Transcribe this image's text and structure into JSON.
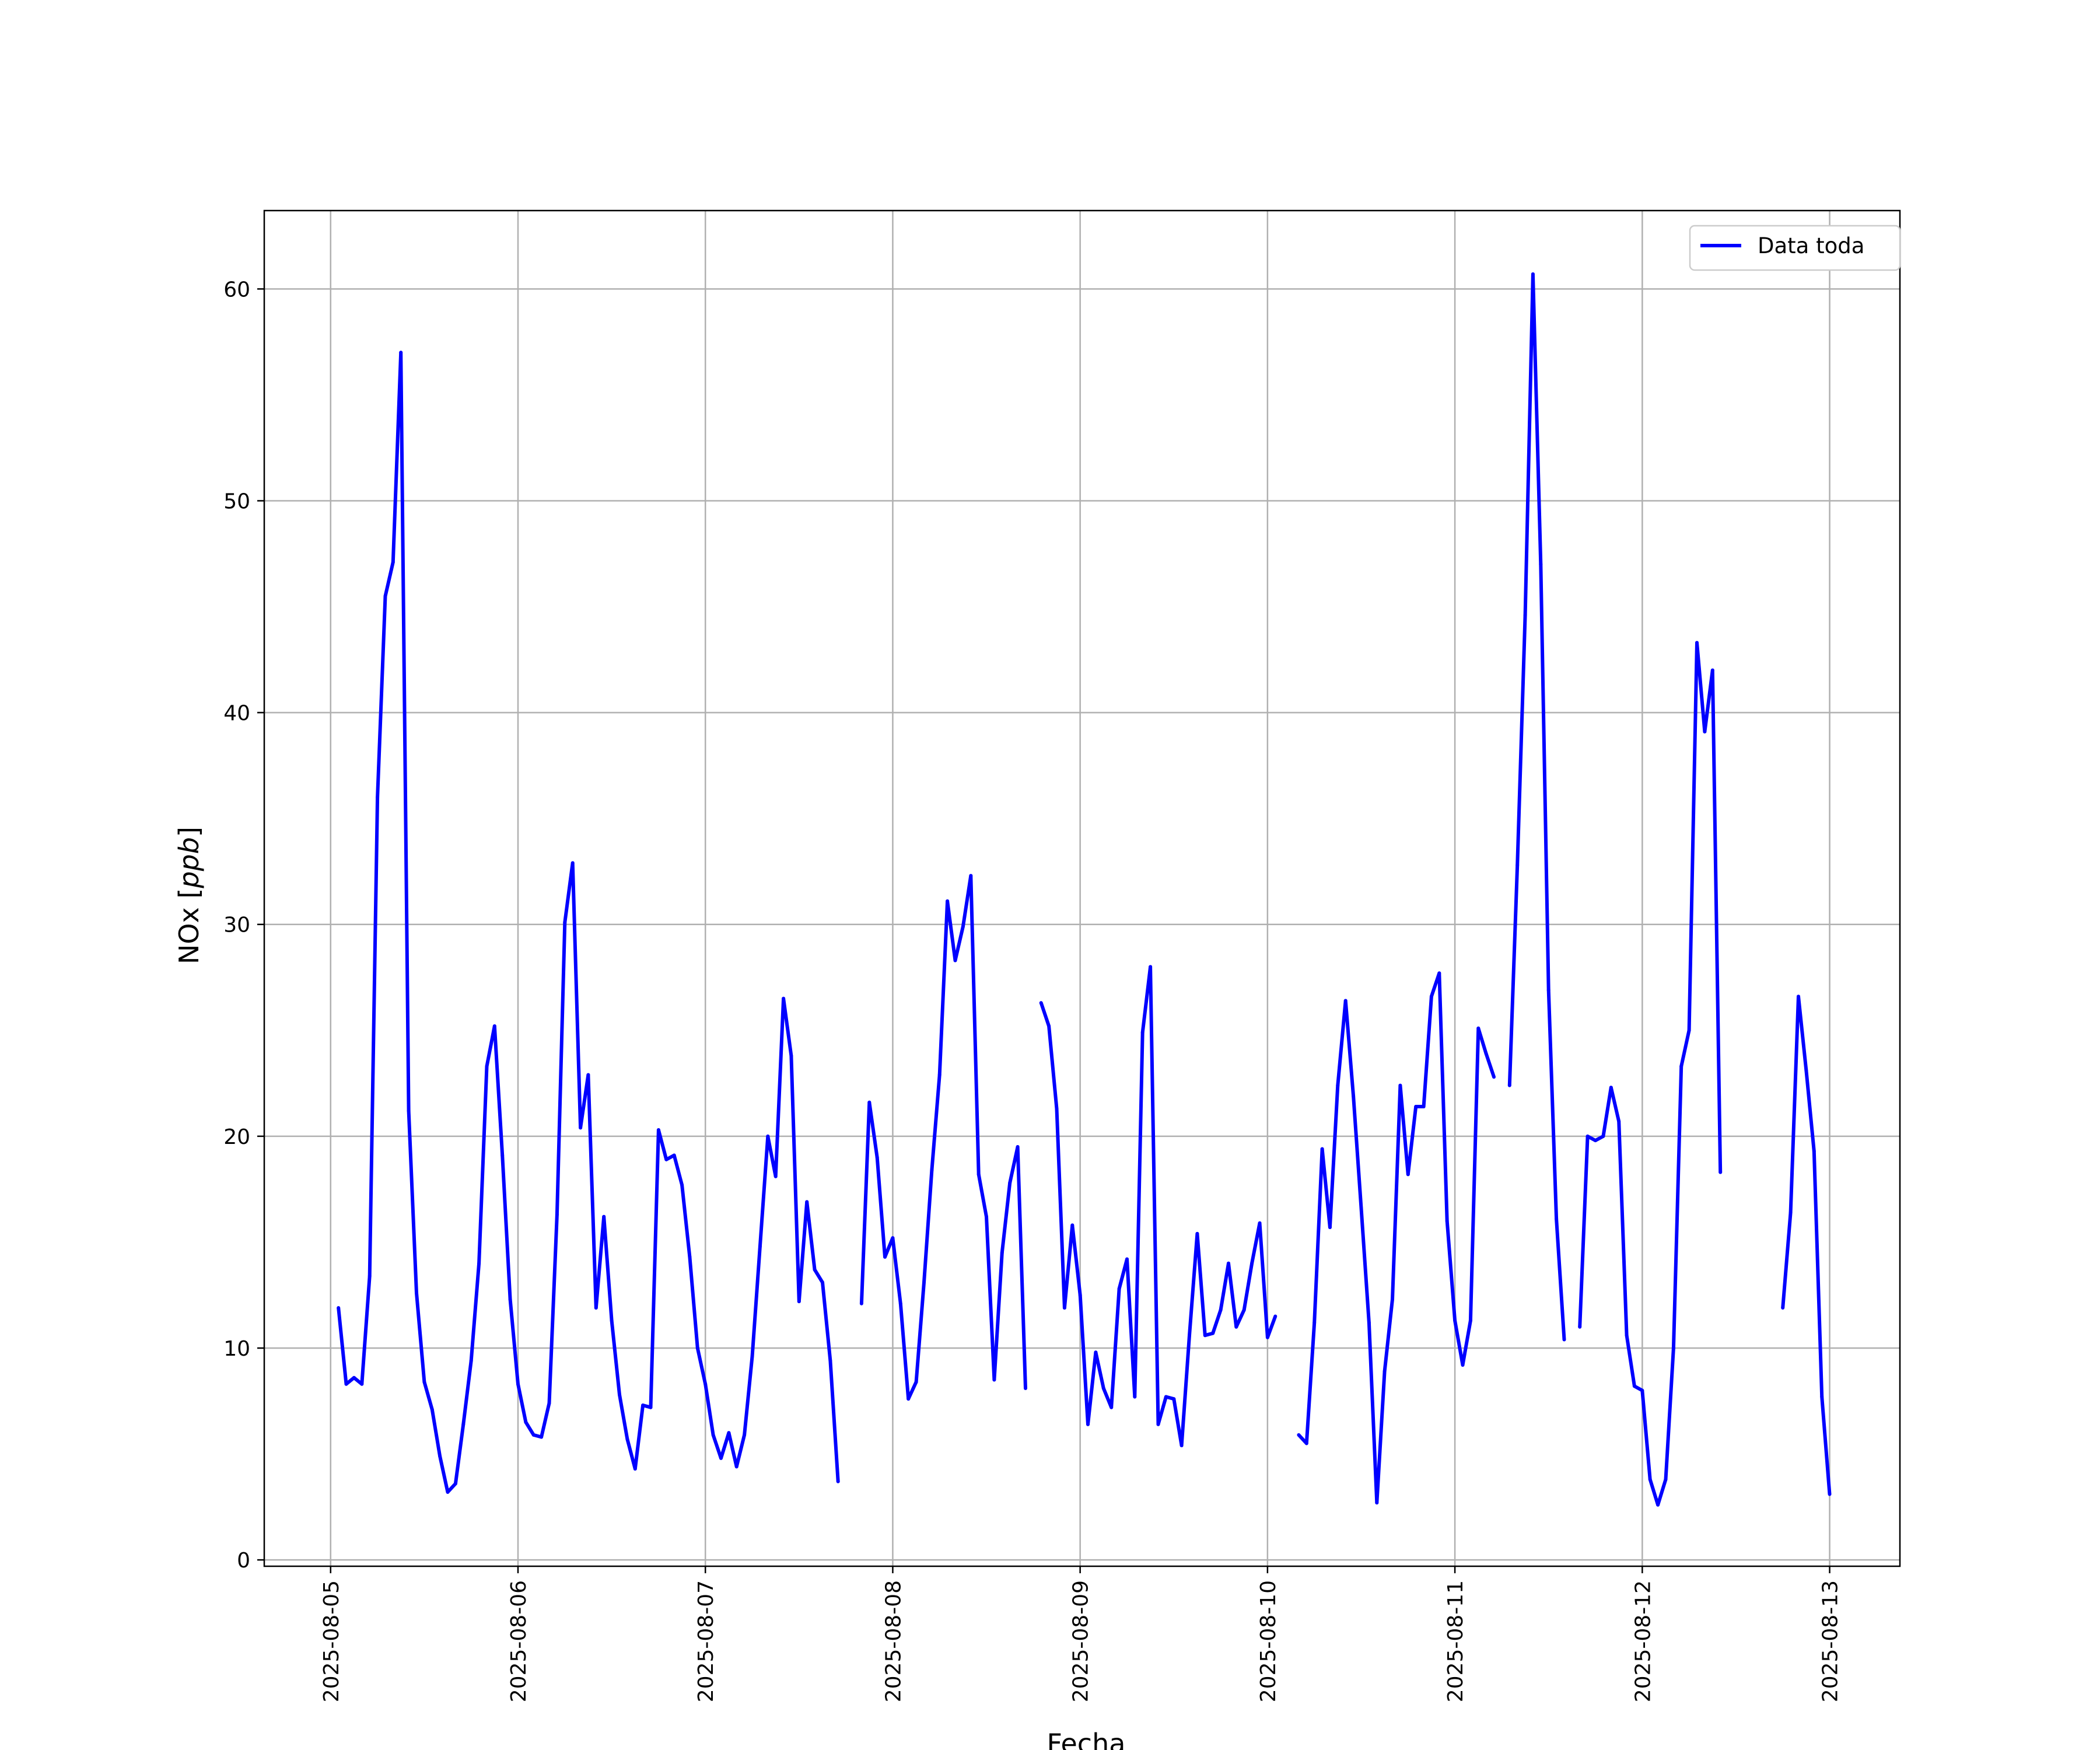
{
  "colors": {
    "series": "#0000ff",
    "grid": "#b0b0b0",
    "axes": "#000000",
    "background": "#ffffff"
  },
  "chart_data": {
    "type": "line",
    "title": "",
    "xlabel": "Fecha",
    "ylabel_text": "NOx",
    "ylabel_unit": "ppb",
    "ylabel": "NOx [ppb]",
    "xlim": [
      "2025-08-04T15:30",
      "2025-08-13T09:00"
    ],
    "ylim": [
      -0.3,
      63.7
    ],
    "grid": true,
    "legend_position": "top-right",
    "x_ticks": [
      "2025-08-05",
      "2025-08-06",
      "2025-08-07",
      "2025-08-08",
      "2025-08-09",
      "2025-08-10",
      "2025-08-11",
      "2025-08-12",
      "2025-08-13"
    ],
    "y_ticks": [
      "0",
      "10",
      "20",
      "30",
      "40",
      "50",
      "60"
    ],
    "series": [
      {
        "name": "Data toda",
        "color": "#0000ff",
        "segments": [
          [
            [
              "2025-08-05T01:00",
              11.9
            ],
            [
              "2025-08-05T02:00",
              8.3
            ],
            [
              "2025-08-05T03:00",
              8.6
            ],
            [
              "2025-08-05T04:00",
              8.3
            ],
            [
              "2025-08-05T05:00",
              13.4
            ],
            [
              "2025-08-05T06:00",
              36.0
            ],
            [
              "2025-08-05T07:00",
              45.5
            ],
            [
              "2025-08-05T08:00",
              47.1
            ],
            [
              "2025-08-05T09:00",
              57.0
            ],
            [
              "2025-08-05T10:00",
              21.2
            ],
            [
              "2025-08-05T11:00",
              12.6
            ],
            [
              "2025-08-05T12:00",
              8.4
            ],
            [
              "2025-08-05T13:00",
              7.1
            ],
            [
              "2025-08-05T14:00",
              4.9
            ],
            [
              "2025-08-05T15:00",
              3.2
            ],
            [
              "2025-08-05T16:00",
              3.6
            ],
            [
              "2025-08-05T17:00",
              6.4
            ],
            [
              "2025-08-05T18:00",
              9.4
            ],
            [
              "2025-08-05T19:00",
              14.0
            ],
            [
              "2025-08-05T20:00",
              23.3
            ],
            [
              "2025-08-05T21:00",
              25.2
            ],
            [
              "2025-08-05T22:00",
              19.1
            ],
            [
              "2025-08-05T23:00",
              12.3
            ],
            [
              "2025-08-06T00:00",
              8.3
            ],
            [
              "2025-08-06T01:00",
              6.5
            ],
            [
              "2025-08-06T02:00",
              5.9
            ],
            [
              "2025-08-06T03:00",
              5.8
            ],
            [
              "2025-08-06T04:00",
              7.4
            ],
            [
              "2025-08-06T05:00",
              16.3
            ],
            [
              "2025-08-06T06:00",
              30.1
            ],
            [
              "2025-08-06T07:00",
              32.9
            ],
            [
              "2025-08-06T08:00",
              20.4
            ],
            [
              "2025-08-06T09:00",
              22.9
            ],
            [
              "2025-08-06T10:00",
              11.9
            ],
            [
              "2025-08-06T11:00",
              16.2
            ],
            [
              "2025-08-06T12:00",
              11.3
            ],
            [
              "2025-08-06T13:00",
              7.8
            ],
            [
              "2025-08-06T14:00",
              5.7
            ],
            [
              "2025-08-06T15:00",
              4.3
            ],
            [
              "2025-08-06T16:00",
              7.3
            ],
            [
              "2025-08-06T17:00",
              7.2
            ],
            [
              "2025-08-06T18:00",
              20.3
            ],
            [
              "2025-08-06T19:00",
              18.9
            ],
            [
              "2025-08-06T20:00",
              19.1
            ],
            [
              "2025-08-06T21:00",
              17.7
            ],
            [
              "2025-08-06T22:00",
              14.3
            ],
            [
              "2025-08-06T23:00",
              10.0
            ],
            [
              "2025-08-07T00:00",
              8.3
            ],
            [
              "2025-08-07T01:00",
              5.9
            ],
            [
              "2025-08-07T02:00",
              4.8
            ],
            [
              "2025-08-07T03:00",
              6.0
            ],
            [
              "2025-08-07T04:00",
              4.4
            ],
            [
              "2025-08-07T05:00",
              5.9
            ],
            [
              "2025-08-07T06:00",
              9.6
            ],
            [
              "2025-08-07T07:00",
              14.8
            ],
            [
              "2025-08-07T08:00",
              20.0
            ],
            [
              "2025-08-07T09:00",
              18.1
            ],
            [
              "2025-08-07T10:00",
              26.5
            ],
            [
              "2025-08-07T11:00",
              23.8
            ],
            [
              "2025-08-07T12:00",
              12.2
            ],
            [
              "2025-08-07T13:00",
              16.9
            ],
            [
              "2025-08-07T14:00",
              13.7
            ],
            [
              "2025-08-07T15:00",
              13.1
            ],
            [
              "2025-08-07T16:00",
              9.4
            ],
            [
              "2025-08-07T17:00",
              3.7
            ]
          ],
          [
            [
              "2025-08-07T20:00",
              12.1
            ],
            [
              "2025-08-07T21:00",
              21.6
            ],
            [
              "2025-08-07T22:00",
              19.0
            ],
            [
              "2025-08-07T23:00",
              14.3
            ],
            [
              "2025-08-08T00:00",
              15.2
            ],
            [
              "2025-08-08T01:00",
              12.1
            ],
            [
              "2025-08-08T02:00",
              7.6
            ],
            [
              "2025-08-08T03:00",
              8.4
            ],
            [
              "2025-08-08T04:00",
              13.1
            ],
            [
              "2025-08-08T05:00",
              18.4
            ],
            [
              "2025-08-08T06:00",
              22.9
            ],
            [
              "2025-08-08T07:00",
              31.1
            ],
            [
              "2025-08-08T08:00",
              28.3
            ],
            [
              "2025-08-08T09:00",
              29.9
            ],
            [
              "2025-08-08T10:00",
              32.3
            ],
            [
              "2025-08-08T11:00",
              18.2
            ],
            [
              "2025-08-08T12:00",
              16.2
            ],
            [
              "2025-08-08T13:00",
              8.5
            ],
            [
              "2025-08-08T14:00",
              14.5
            ],
            [
              "2025-08-08T15:00",
              17.8
            ],
            [
              "2025-08-08T16:00",
              19.5
            ],
            [
              "2025-08-08T17:00",
              8.1
            ]
          ],
          [
            [
              "2025-08-08T19:00",
              26.3
            ],
            [
              "2025-08-08T20:00",
              25.2
            ],
            [
              "2025-08-08T21:00",
              21.3
            ],
            [
              "2025-08-08T22:00",
              11.9
            ],
            [
              "2025-08-08T23:00",
              15.8
            ],
            [
              "2025-08-09T00:00",
              12.5
            ],
            [
              "2025-08-09T01:00",
              6.4
            ],
            [
              "2025-08-09T02:00",
              9.8
            ],
            [
              "2025-08-09T03:00",
              8.1
            ],
            [
              "2025-08-09T04:00",
              7.2
            ],
            [
              "2025-08-09T05:00",
              12.8
            ],
            [
              "2025-08-09T06:00",
              14.2
            ],
            [
              "2025-08-09T07:00",
              7.7
            ],
            [
              "2025-08-09T08:00",
              24.9
            ],
            [
              "2025-08-09T09:00",
              28.0
            ],
            [
              "2025-08-09T10:00",
              6.4
            ],
            [
              "2025-08-09T11:00",
              7.7
            ],
            [
              "2025-08-09T12:00",
              7.6
            ],
            [
              "2025-08-09T13:00",
              5.4
            ],
            [
              "2025-08-09T14:00",
              10.6
            ],
            [
              "2025-08-09T15:00",
              15.4
            ],
            [
              "2025-08-09T16:00",
              10.6
            ],
            [
              "2025-08-09T17:00",
              10.7
            ],
            [
              "2025-08-09T18:00",
              11.8
            ],
            [
              "2025-08-09T19:00",
              14.0
            ],
            [
              "2025-08-09T20:00",
              11.0
            ],
            [
              "2025-08-09T21:00",
              11.8
            ],
            [
              "2025-08-09T22:00",
              14.0
            ],
            [
              "2025-08-09T23:00",
              15.9
            ],
            [
              "2025-08-10T00:00",
              10.5
            ],
            [
              "2025-08-10T01:00",
              11.5
            ]
          ],
          [
            [
              "2025-08-10T04:00",
              5.9
            ],
            [
              "2025-08-10T05:00",
              5.5
            ],
            [
              "2025-08-10T06:00",
              11.2
            ],
            [
              "2025-08-10T07:00",
              19.4
            ],
            [
              "2025-08-10T08:00",
              15.7
            ],
            [
              "2025-08-10T09:00",
              22.4
            ],
            [
              "2025-08-10T10:00",
              26.4
            ],
            [
              "2025-08-10T11:00",
              21.9
            ],
            [
              "2025-08-10T12:00",
              16.6
            ],
            [
              "2025-08-10T13:00",
              11.2
            ],
            [
              "2025-08-10T14:00",
              2.7
            ],
            [
              "2025-08-10T15:00",
              8.9
            ],
            [
              "2025-08-10T16:00",
              12.3
            ],
            [
              "2025-08-10T17:00",
              22.4
            ],
            [
              "2025-08-10T18:00",
              18.2
            ],
            [
              "2025-08-10T19:00",
              21.4
            ],
            [
              "2025-08-10T20:00",
              21.4
            ],
            [
              "2025-08-10T21:00",
              26.6
            ],
            [
              "2025-08-10T22:00",
              27.7
            ],
            [
              "2025-08-10T23:00",
              16.0
            ],
            [
              "2025-08-11T00:00",
              11.3
            ],
            [
              "2025-08-11T01:00",
              9.2
            ],
            [
              "2025-08-11T02:00",
              11.3
            ],
            [
              "2025-08-11T03:00",
              25.1
            ],
            [
              "2025-08-11T04:00",
              23.9
            ],
            [
              "2025-08-11T05:00",
              22.8
            ]
          ],
          [
            [
              "2025-08-11T07:00",
              22.4
            ],
            [
              "2025-08-11T08:00",
              32.8
            ],
            [
              "2025-08-11T09:00",
              44.6
            ],
            [
              "2025-08-11T10:00",
              60.7
            ],
            [
              "2025-08-11T11:00",
              47.0
            ],
            [
              "2025-08-11T12:00",
              26.9
            ],
            [
              "2025-08-11T13:00",
              16.1
            ],
            [
              "2025-08-11T14:00",
              10.4
            ]
          ],
          [
            [
              "2025-08-11T16:00",
              11.0
            ],
            [
              "2025-08-11T17:00",
              20.0
            ],
            [
              "2025-08-11T18:00",
              19.8
            ],
            [
              "2025-08-11T19:00",
              20.0
            ],
            [
              "2025-08-11T20:00",
              22.3
            ],
            [
              "2025-08-11T21:00",
              20.7
            ],
            [
              "2025-08-11T22:00",
              10.6
            ],
            [
              "2025-08-11T23:00",
              8.2
            ],
            [
              "2025-08-12T00:00",
              8.0
            ],
            [
              "2025-08-12T01:00",
              3.8
            ],
            [
              "2025-08-12T02:00",
              2.6
            ],
            [
              "2025-08-12T03:00",
              3.8
            ],
            [
              "2025-08-12T04:00",
              10.0
            ],
            [
              "2025-08-12T05:00",
              23.3
            ],
            [
              "2025-08-12T06:00",
              25.0
            ],
            [
              "2025-08-12T07:00",
              43.3
            ],
            [
              "2025-08-12T08:00",
              39.1
            ],
            [
              "2025-08-12T09:00",
              42.0
            ],
            [
              "2025-08-12T10:00",
              18.3
            ]
          ],
          [
            [
              "2025-08-12T18:00",
              11.9
            ],
            [
              "2025-08-12T19:00",
              16.4
            ],
            [
              "2025-08-12T20:00",
              26.6
            ],
            [
              "2025-08-12T21:00",
              23.1
            ],
            [
              "2025-08-12T22:00",
              19.3
            ],
            [
              "2025-08-12T23:00",
              7.7
            ],
            [
              "2025-08-13T00:00",
              3.1
            ]
          ]
        ]
      }
    ]
  }
}
